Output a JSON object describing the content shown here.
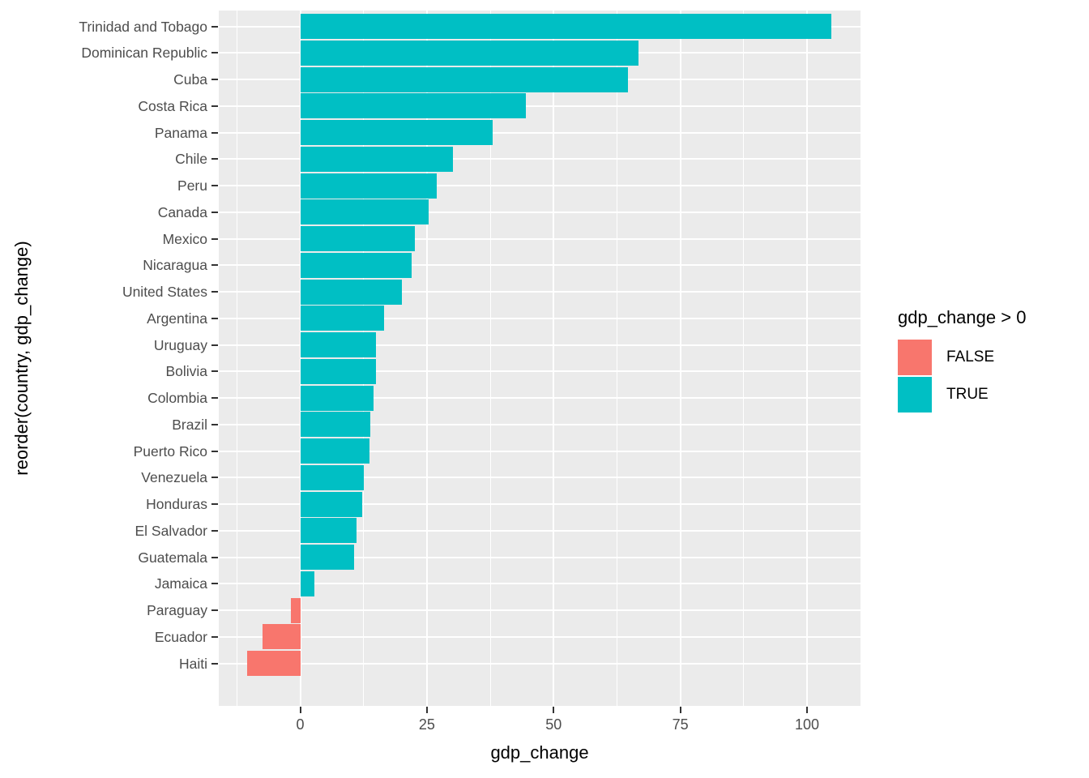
{
  "figure": {
    "background": "#FFFFFF",
    "panel_background": "#EBEBEB",
    "gridline_color": "#FFFFFF",
    "tick_color": "#333333",
    "axis_text_color": "#4D4D4D",
    "axis_title_color": "#000000"
  },
  "chart_data": {
    "type": "bar",
    "orientation": "horizontal",
    "title": "",
    "xlabel": "gdp_change",
    "ylabel": "reorder(country, gdp_change)",
    "categories": [
      "Trinidad and Tobago",
      "Dominican Republic",
      "Cuba",
      "Costa Rica",
      "Panama",
      "Chile",
      "Peru",
      "Canada",
      "Mexico",
      "Nicaragua",
      "United States",
      "Argentina",
      "Uruguay",
      "Bolivia",
      "Colombia",
      "Brazil",
      "Puerto Rico",
      "Venezuela",
      "Honduras",
      "El Salvador",
      "Guatemala",
      "Jamaica",
      "Paraguay",
      "Ecuador",
      "Haiti"
    ],
    "values": [
      104.8,
      66.7,
      64.7,
      44.5,
      37.9,
      30.2,
      26.9,
      25.4,
      22.6,
      22.0,
      20.1,
      16.5,
      15.0,
      14.9,
      14.5,
      13.9,
      13.7,
      12.5,
      12.3,
      11.1,
      10.7,
      2.8,
      -1.8,
      -7.5,
      -10.4
    ],
    "xlim": [
      -16.07,
      110.55
    ],
    "x_major_ticks": [
      0,
      25,
      50,
      75,
      100
    ],
    "x_major_tick_labels": [
      "0",
      "25",
      "50",
      "75",
      "100"
    ],
    "x_minor_ticks": [
      -12.5,
      12.5,
      37.5,
      62.5,
      87.5
    ],
    "grid": true,
    "bar_color_rule": "gdp_change > 0",
    "colors": {
      "positive": "#00BFC4",
      "negative": "#F8766D"
    },
    "legend": {
      "title": "gdp_change > 0",
      "position": "right",
      "entries": [
        {
          "label": "FALSE",
          "color": "#F8766D"
        },
        {
          "label": "TRUE",
          "color": "#00BFC4"
        }
      ]
    }
  }
}
